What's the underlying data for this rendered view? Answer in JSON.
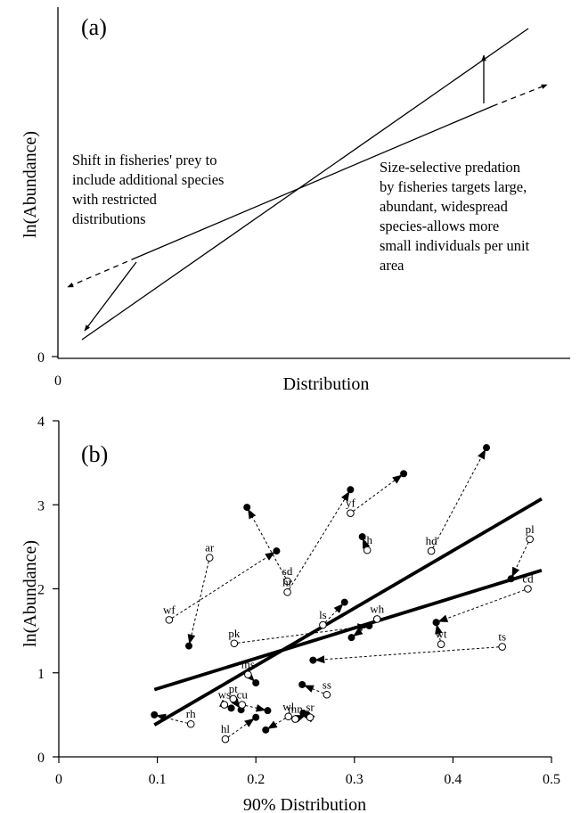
{
  "panel_a": {
    "panel_label": "(a)",
    "xlabel": "Distribution",
    "ylabel": "ln(Abundance)",
    "x_tick": "0",
    "y_tick": "0",
    "annotation_left": [
      "Shift in fisheries' prey to",
      "include additional species",
      "with restricted",
      "distributions"
    ],
    "annotation_right": [
      "Size-selective predation",
      "by fisheries targets large,",
      "abundant, widespread",
      "species-allows more",
      "small individuals per unit",
      "area"
    ]
  },
  "chart_data": {
    "type": "scatter",
    "panel_label": "(b)",
    "xlabel": "90% Distribution",
    "ylabel": "ln(Abundance)",
    "xlim": [
      0,
      0.5
    ],
    "ylim": [
      0,
      4
    ],
    "xticks": [
      "0",
      "0.1",
      "0.2",
      "0.3",
      "0.4",
      "0.5"
    ],
    "yticks": [
      "0",
      "1",
      "2",
      "3",
      "4"
    ],
    "grid": false,
    "legend": "none",
    "regression_lines": [
      {
        "from": [
          0.097,
          0.8
        ],
        "to": [
          0.49,
          2.22
        ]
      },
      {
        "from": [
          0.097,
          0.38
        ],
        "to": [
          0.49,
          3.07
        ]
      }
    ],
    "species": [
      {
        "code": "ar",
        "open": [
          0.153,
          2.37
        ],
        "filled": [
          0.132,
          1.32
        ]
      },
      {
        "code": "wf",
        "open": [
          0.112,
          1.63
        ],
        "filled": [
          0.221,
          2.45
        ]
      },
      {
        "code": "sd",
        "open": [
          0.232,
          2.09
        ],
        "filled": [
          0.191,
          2.97
        ]
      },
      {
        "code": "hr",
        "open": [
          0.232,
          1.96
        ],
        "filled": [
          0.296,
          3.18
        ]
      },
      {
        "code": "yf",
        "open": [
          0.296,
          2.9
        ],
        "filled": [
          0.35,
          3.37
        ]
      },
      {
        "code": "sh",
        "open": [
          0.313,
          2.46
        ],
        "filled": [
          0.308,
          2.62
        ]
      },
      {
        "code": "hd",
        "open": [
          0.378,
          2.45
        ],
        "filled": [
          0.434,
          3.68
        ]
      },
      {
        "code": "pl",
        "open": [
          0.478,
          2.59
        ],
        "filled": [
          0.459,
          2.12
        ]
      },
      {
        "code": "cd",
        "open": [
          0.476,
          2.0
        ],
        "filled": [
          0.383,
          1.6
        ]
      },
      {
        "code": "pk",
        "open": [
          0.178,
          1.35
        ],
        "filled": [
          0.315,
          1.56
        ]
      },
      {
        "code": "ls",
        "open": [
          0.268,
          1.57
        ],
        "filled": [
          0.29,
          1.84
        ]
      },
      {
        "code": "wh",
        "open": [
          0.323,
          1.64
        ],
        "filled": [
          0.297,
          1.42
        ]
      },
      {
        "code": "wt",
        "open": [
          0.388,
          1.34
        ],
        "filled": [
          0.383,
          1.6
        ]
      },
      {
        "code": "ts",
        "open": [
          0.45,
          1.31
        ],
        "filled": [
          0.258,
          1.15
        ]
      },
      {
        "code": "ms",
        "open": [
          0.192,
          0.98
        ],
        "filled": [
          0.2,
          0.88
        ]
      },
      {
        "code": "ss",
        "open": [
          0.272,
          0.74
        ],
        "filled": [
          0.247,
          0.86
        ]
      },
      {
        "code": "ws",
        "open": [
          0.168,
          0.62
        ],
        "filled": [
          0.175,
          0.58
        ]
      },
      {
        "code": "pt",
        "open": [
          0.177,
          0.69
        ],
        "filled": [
          0.185,
          0.56
        ]
      },
      {
        "code": "cu",
        "open": [
          0.186,
          0.62
        ],
        "filled": [
          0.212,
          0.55
        ]
      },
      {
        "code": "rh",
        "open": [
          0.134,
          0.39
        ],
        "filled": [
          0.097,
          0.5
        ]
      },
      {
        "code": "hl",
        "open": [
          0.169,
          0.21
        ],
        "filled": [
          0.2,
          0.47
        ]
      },
      {
        "code": "wl",
        "open": [
          0.233,
          0.48
        ],
        "filled": [
          0.21,
          0.32
        ]
      },
      {
        "code": "mn",
        "open": [
          0.24,
          0.45
        ],
        "filled": [
          0.252,
          0.5
        ]
      },
      {
        "code": "sr",
        "open": [
          0.255,
          0.47
        ],
        "filled": [
          0.248,
          0.52
        ]
      }
    ]
  }
}
